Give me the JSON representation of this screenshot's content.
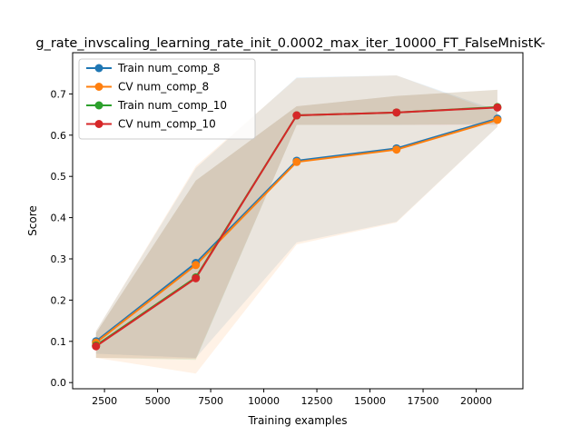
{
  "chart_data": {
    "type": "line",
    "title": "g_rate_invscaling_learning_rate_init_0.0002_max_iter_10000_FT_FalseMnistK-",
    "xlabel": "Training examples",
    "ylabel": "Score",
    "xlim": [
      1000,
      22200
    ],
    "ylim": [
      -0.015,
      0.8
    ],
    "xticks": [
      2500,
      5000,
      7500,
      10000,
      12500,
      15000,
      17500,
      20000
    ],
    "xtick_labels": [
      "2500",
      "5000",
      "7500",
      "10000",
      "12500",
      "15000",
      "17500",
      "20000"
    ],
    "yticks": [
      0.0,
      0.1,
      0.2,
      0.3,
      0.4,
      0.5,
      0.6,
      0.7
    ],
    "ytick_labels": [
      "0.0",
      "0.1",
      "0.2",
      "0.3",
      "0.4",
      "0.5",
      "0.6",
      "0.7"
    ],
    "grid": false,
    "legend_position": "top-left",
    "x": [
      2100,
      6800,
      11550,
      16250,
      21000
    ],
    "series": [
      {
        "name": "Train num_comp_8",
        "color": "#1f77b4",
        "values": [
          0.1,
          0.29,
          0.538,
          0.568,
          0.64
        ],
        "band_low": [
          0.07,
          0.06,
          0.34,
          0.39,
          0.62
        ],
        "band_high": [
          0.125,
          0.52,
          0.74,
          0.745,
          0.66
        ]
      },
      {
        "name": "CV num_comp_8",
        "color": "#ff7f0e",
        "values": [
          0.097,
          0.285,
          0.535,
          0.565,
          0.637
        ],
        "band_low": [
          0.06,
          0.022,
          0.335,
          0.388,
          0.62
        ],
        "band_high": [
          0.125,
          0.525,
          0.738,
          0.745,
          0.655
        ]
      },
      {
        "name": "Train num_comp_10",
        "color": "#2ca02c",
        "values": [
          0.09,
          0.255,
          0.648,
          0.655,
          0.668
        ],
        "band_low": [
          0.06,
          0.055,
          0.625,
          0.625,
          0.627
        ],
        "band_high": [
          0.12,
          0.49,
          0.67,
          0.695,
          0.71
        ]
      },
      {
        "name": "CV num_comp_10",
        "color": "#d62728",
        "values": [
          0.088,
          0.253,
          0.648,
          0.655,
          0.667
        ],
        "band_low": [
          0.06,
          0.058,
          0.625,
          0.625,
          0.625
        ],
        "band_high": [
          0.12,
          0.49,
          0.67,
          0.695,
          0.71
        ]
      }
    ]
  }
}
